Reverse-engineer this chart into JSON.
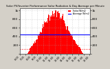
{
  "title": "Solar PV/Inverter Performance Solar Radiation & Day Average per Minute",
  "bg_color": "#d4d0c8",
  "plot_bg_color": "#ffffff",
  "bar_color": "#ff0000",
  "avg_line_color": "#0000ff",
  "avg_line_value": 450,
  "dotted_line_color": "#ff0000",
  "dotted_line_value": 110,
  "ylim": [
    0,
    1050
  ],
  "xlim": [
    0,
    144
  ],
  "grid_color": "#aaaaaa",
  "ytick_labels": [
    "1k",
    "800",
    "600",
    "400",
    "200",
    ""
  ],
  "ytick_values": [
    1000,
    800,
    600,
    400,
    200,
    0
  ],
  "legend_solar": "Solar W/m2",
  "legend_avg": "Average W/m2"
}
